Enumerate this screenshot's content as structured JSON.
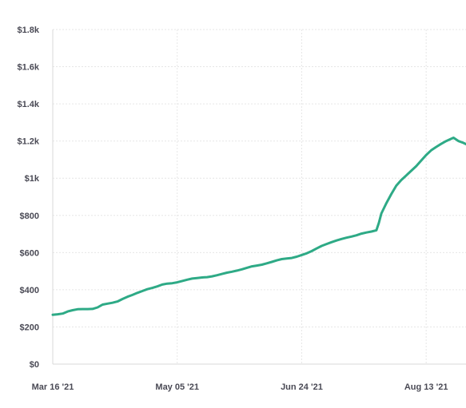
{
  "chart_data": {
    "type": "line",
    "grid": true,
    "legend": "none",
    "line_color": "#2eaa86",
    "ylim": [
      0,
      1800
    ],
    "y_ticks": [
      {
        "value": 0,
        "label": "$0"
      },
      {
        "value": 200,
        "label": "$200"
      },
      {
        "value": 400,
        "label": "$400"
      },
      {
        "value": 600,
        "label": "$600"
      },
      {
        "value": 800,
        "label": "$800"
      },
      {
        "value": 1000,
        "label": "$1k"
      },
      {
        "value": 1200,
        "label": "$1.2k"
      },
      {
        "value": 1400,
        "label": "$1.4k"
      },
      {
        "value": 1600,
        "label": "$1.6k"
      },
      {
        "value": 1800,
        "label": "$1.8k"
      }
    ],
    "x_ticks": [
      {
        "value": "2021-03-16",
        "label": "Mar 16 '21"
      },
      {
        "value": "2021-05-05",
        "label": "May 05 '21"
      },
      {
        "value": "2021-06-24",
        "label": "Jun 24 '21"
      },
      {
        "value": "2021-08-13",
        "label": "Aug 13 '21"
      }
    ],
    "xlim": [
      "2021-03-16",
      "2021-08-29"
    ],
    "series": [
      {
        "points": [
          [
            "2021-03-16",
            265
          ],
          [
            "2021-03-18",
            268
          ],
          [
            "2021-03-20",
            272
          ],
          [
            "2021-03-22",
            283
          ],
          [
            "2021-03-24",
            290
          ],
          [
            "2021-03-26",
            295
          ],
          [
            "2021-03-28",
            296
          ],
          [
            "2021-03-30",
            296
          ],
          [
            "2021-04-01",
            297
          ],
          [
            "2021-04-03",
            305
          ],
          [
            "2021-04-05",
            320
          ],
          [
            "2021-04-07",
            325
          ],
          [
            "2021-04-09",
            330
          ],
          [
            "2021-04-11",
            337
          ],
          [
            "2021-04-13",
            350
          ],
          [
            "2021-04-15",
            362
          ],
          [
            "2021-04-17",
            372
          ],
          [
            "2021-04-19",
            383
          ],
          [
            "2021-04-21",
            393
          ],
          [
            "2021-04-23",
            403
          ],
          [
            "2021-04-25",
            410
          ],
          [
            "2021-04-27",
            418
          ],
          [
            "2021-04-29",
            428
          ],
          [
            "2021-05-01",
            433
          ],
          [
            "2021-05-03",
            435
          ],
          [
            "2021-05-05",
            440
          ],
          [
            "2021-05-07",
            447
          ],
          [
            "2021-05-09",
            454
          ],
          [
            "2021-05-11",
            460
          ],
          [
            "2021-05-13",
            463
          ],
          [
            "2021-05-15",
            466
          ],
          [
            "2021-05-17",
            468
          ],
          [
            "2021-05-19",
            472
          ],
          [
            "2021-05-21",
            478
          ],
          [
            "2021-05-23",
            485
          ],
          [
            "2021-05-25",
            492
          ],
          [
            "2021-05-27",
            497
          ],
          [
            "2021-05-29",
            503
          ],
          [
            "2021-05-31",
            510
          ],
          [
            "2021-06-02",
            518
          ],
          [
            "2021-06-04",
            526
          ],
          [
            "2021-06-06",
            530
          ],
          [
            "2021-06-08",
            535
          ],
          [
            "2021-06-10",
            542
          ],
          [
            "2021-06-12",
            550
          ],
          [
            "2021-06-14",
            558
          ],
          [
            "2021-06-16",
            565
          ],
          [
            "2021-06-18",
            568
          ],
          [
            "2021-06-20",
            571
          ],
          [
            "2021-06-22",
            578
          ],
          [
            "2021-06-24",
            587
          ],
          [
            "2021-06-26",
            596
          ],
          [
            "2021-06-28",
            608
          ],
          [
            "2021-06-30",
            622
          ],
          [
            "2021-07-02",
            636
          ],
          [
            "2021-07-04",
            646
          ],
          [
            "2021-07-06",
            656
          ],
          [
            "2021-07-08",
            665
          ],
          [
            "2021-07-10",
            673
          ],
          [
            "2021-07-12",
            680
          ],
          [
            "2021-07-14",
            686
          ],
          [
            "2021-07-16",
            693
          ],
          [
            "2021-07-18",
            702
          ],
          [
            "2021-07-20",
            708
          ],
          [
            "2021-07-22",
            713
          ],
          [
            "2021-07-24",
            720
          ],
          [
            "2021-07-25",
            760
          ],
          [
            "2021-07-26",
            810
          ],
          [
            "2021-07-28",
            865
          ],
          [
            "2021-07-30",
            915
          ],
          [
            "2021-08-01",
            960
          ],
          [
            "2021-08-03",
            990
          ],
          [
            "2021-08-05",
            1015
          ],
          [
            "2021-08-07",
            1040
          ],
          [
            "2021-08-09",
            1065
          ],
          [
            "2021-08-11",
            1095
          ],
          [
            "2021-08-13",
            1125
          ],
          [
            "2021-08-15",
            1150
          ],
          [
            "2021-08-17",
            1168
          ],
          [
            "2021-08-19",
            1185
          ],
          [
            "2021-08-21",
            1200
          ],
          [
            "2021-08-23",
            1212
          ],
          [
            "2021-08-24",
            1218
          ],
          [
            "2021-08-26",
            1200
          ],
          [
            "2021-08-28",
            1190
          ],
          [
            "2021-08-29",
            1183
          ]
        ]
      }
    ]
  }
}
